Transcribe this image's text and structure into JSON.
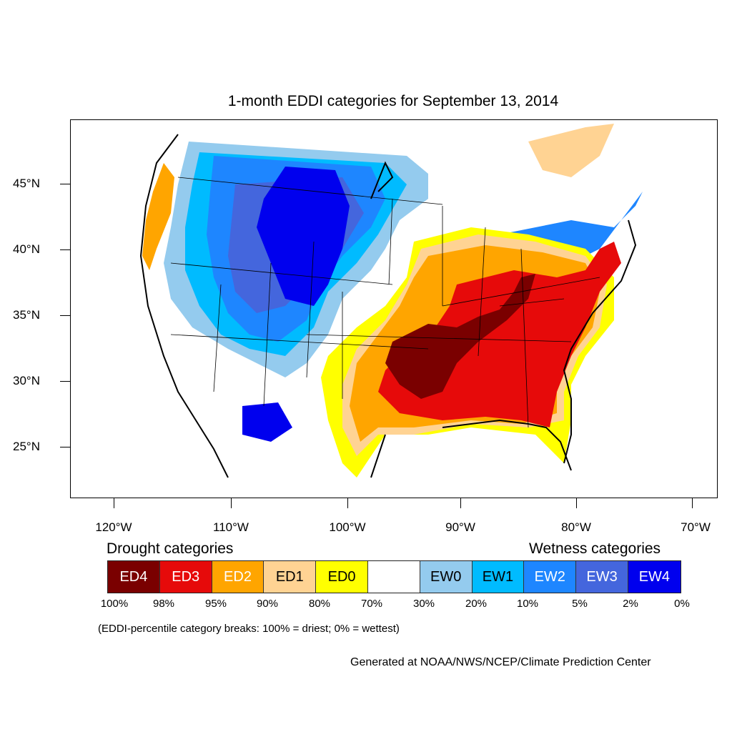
{
  "title": "1-month EDDI categories for September 13, 2014",
  "lat_labels": [
    "45°N",
    "40°N",
    "35°N",
    "30°N",
    "25°N"
  ],
  "lon_labels": [
    "120°W",
    "110°W",
    "100°W",
    "90°W",
    "80°W",
    "70°W"
  ],
  "drought_heading": "Drought categories",
  "wetness_heading": "Wetness categories",
  "categories": [
    {
      "label": "ED4",
      "color": "#7a0000",
      "text_color": "#ffffff"
    },
    {
      "label": "ED3",
      "color": "#e60a0a",
      "text_color": "#ffffff"
    },
    {
      "label": "ED2",
      "color": "#ffa500",
      "text_color": "#ffffff"
    },
    {
      "label": "ED1",
      "color": "#ffd393",
      "text_color": "#000000"
    },
    {
      "label": "ED0",
      "color": "#ffff00",
      "text_color": "#000000"
    },
    {
      "label": "",
      "color": "#ffffff",
      "text_color": "#000000"
    },
    {
      "label": "EW0",
      "color": "#94cbee",
      "text_color": "#000000"
    },
    {
      "label": "EW1",
      "color": "#00bbff",
      "text_color": "#000000"
    },
    {
      "label": "EW2",
      "color": "#1e86ff",
      "text_color": "#ffffff"
    },
    {
      "label": "EW3",
      "color": "#4466dd",
      "text_color": "#ffffff"
    },
    {
      "label": "EW4",
      "color": "#0000ee",
      "text_color": "#ffffff"
    }
  ],
  "percentiles": [
    "100%",
    "98%",
    "95%",
    "90%",
    "80%",
    "70%",
    "30%",
    "20%",
    "10%",
    "5%",
    "2%",
    "0%"
  ],
  "note": "(EDDI-percentile category breaks: 100% = driest; 0% = wettest)",
  "credit": "Generated at NOAA/NWS/NCEP/Climate Prediction Center"
}
